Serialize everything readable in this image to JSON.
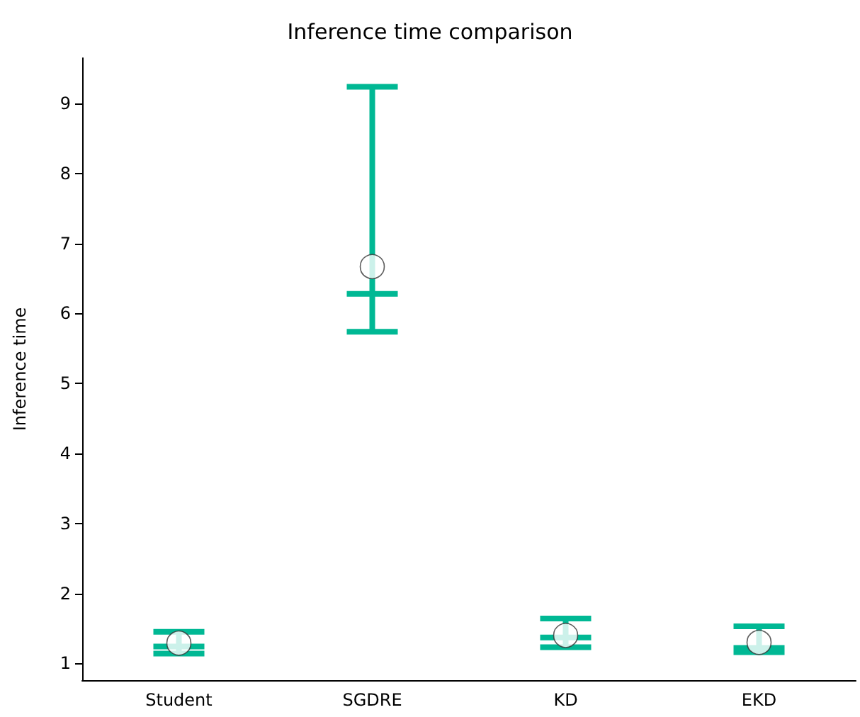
{
  "chart_data": {
    "type": "box",
    "title": "Inference time comparison",
    "ylabel": "Inference time",
    "categories": [
      "Student",
      "SGDRE",
      "KD",
      "EKD"
    ],
    "color": "#00b894",
    "boxes": [
      {
        "low": 1.14,
        "q1": 1.24,
        "median": 1.24,
        "q3": 1.24,
        "high": 1.45,
        "mean": 1.29
      },
      {
        "low": 5.74,
        "q1": 6.28,
        "median": 6.28,
        "q3": 6.28,
        "high": 9.24,
        "mean": 6.67
      },
      {
        "low": 1.23,
        "q1": 1.37,
        "median": 1.37,
        "q3": 1.37,
        "high": 1.64,
        "mean": 1.4
      },
      {
        "low": 1.16,
        "q1": 1.22,
        "median": 1.22,
        "q3": 1.22,
        "high": 1.53,
        "mean": 1.3
      }
    ],
    "ylim": [
      0.76,
      9.65
    ],
    "yticks": [
      1,
      2,
      3,
      4,
      5,
      6,
      7,
      8,
      9
    ],
    "grid": false
  }
}
